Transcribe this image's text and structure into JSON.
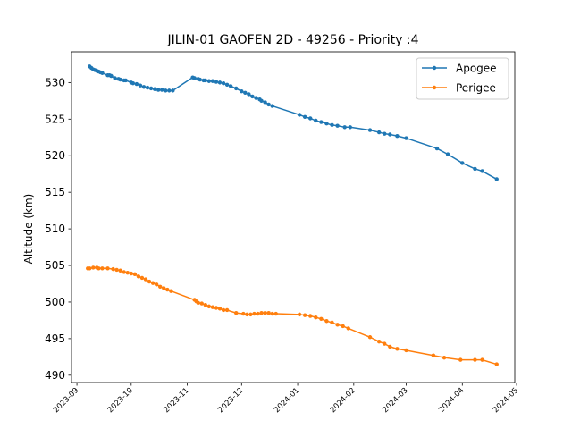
{
  "chart_data": {
    "type": "line",
    "title": "JILIN-01 GAOFEN 2D - 49256 - Priority :4",
    "xlabel": "",
    "ylabel": "Altitude (km)",
    "xlim": [
      "2023-08-29",
      "2024-04-30"
    ],
    "ylim": [
      489.0,
      534.2
    ],
    "x_ticks": [
      "2023-09",
      "2023-10",
      "2023-11",
      "2023-12",
      "2024-01",
      "2024-02",
      "2024-03",
      "2024-04",
      "2024-05"
    ],
    "y_ticks": [
      490,
      495,
      500,
      505,
      510,
      515,
      520,
      525,
      530
    ],
    "grid": false,
    "legend": "top-right",
    "colors": {
      "apogee": "#1f77b4",
      "perigee": "#ff7f0e"
    },
    "series": [
      {
        "name": "Apogee",
        "points": [
          [
            "2023-09-08",
            532.2
          ],
          [
            "2023-09-09",
            532.0
          ],
          [
            "2023-09-10",
            531.8
          ],
          [
            "2023-09-11",
            531.7
          ],
          [
            "2023-09-12",
            531.6
          ],
          [
            "2023-09-13",
            531.5
          ],
          [
            "2023-09-14",
            531.4
          ],
          [
            "2023-09-15",
            531.3
          ],
          [
            "2023-09-18",
            531.0
          ],
          [
            "2023-09-19",
            531.0
          ],
          [
            "2023-09-20",
            530.9
          ],
          [
            "2023-09-22",
            530.6
          ],
          [
            "2023-09-24",
            530.5
          ],
          [
            "2023-09-25",
            530.4
          ],
          [
            "2023-09-27",
            530.3
          ],
          [
            "2023-09-28",
            530.3
          ],
          [
            "2023-10-01",
            530.0
          ],
          [
            "2023-10-02",
            529.9
          ],
          [
            "2023-10-04",
            529.8
          ],
          [
            "2023-10-06",
            529.6
          ],
          [
            "2023-10-08",
            529.4
          ],
          [
            "2023-10-10",
            529.3
          ],
          [
            "2023-10-12",
            529.2
          ],
          [
            "2023-10-14",
            529.1
          ],
          [
            "2023-10-16",
            529.0
          ],
          [
            "2023-10-18",
            529.0
          ],
          [
            "2023-10-20",
            528.9
          ],
          [
            "2023-10-22",
            528.9
          ],
          [
            "2023-10-24",
            528.9
          ],
          [
            "2023-11-04",
            530.7
          ],
          [
            "2023-11-05",
            530.6
          ],
          [
            "2023-11-07",
            530.5
          ],
          [
            "2023-11-08",
            530.4
          ],
          [
            "2023-11-10",
            530.3
          ],
          [
            "2023-11-11",
            530.3
          ],
          [
            "2023-11-13",
            530.2
          ],
          [
            "2023-11-15",
            530.2
          ],
          [
            "2023-11-17",
            530.1
          ],
          [
            "2023-11-19",
            530.0
          ],
          [
            "2023-11-21",
            529.9
          ],
          [
            "2023-11-23",
            529.7
          ],
          [
            "2023-11-25",
            529.5
          ],
          [
            "2023-11-28",
            529.2
          ],
          [
            "2023-12-01",
            528.8
          ],
          [
            "2023-12-03",
            528.6
          ],
          [
            "2023-12-05",
            528.4
          ],
          [
            "2023-12-07",
            528.1
          ],
          [
            "2023-12-09",
            527.9
          ],
          [
            "2023-12-11",
            527.7
          ],
          [
            "2023-12-12",
            527.5
          ],
          [
            "2023-12-14",
            527.3
          ],
          [
            "2023-12-16",
            527.0
          ],
          [
            "2023-12-18",
            526.8
          ],
          [
            "2024-01-02",
            525.6
          ],
          [
            "2024-01-05",
            525.3
          ],
          [
            "2024-01-08",
            525.1
          ],
          [
            "2024-01-11",
            524.8
          ],
          [
            "2024-01-14",
            524.6
          ],
          [
            "2024-01-17",
            524.4
          ],
          [
            "2024-01-20",
            524.2
          ],
          [
            "2024-01-23",
            524.1
          ],
          [
            "2024-01-27",
            523.9
          ],
          [
            "2024-01-30",
            523.9
          ],
          [
            "2024-02-10",
            523.5
          ],
          [
            "2024-02-15",
            523.2
          ],
          [
            "2024-02-18",
            523.0
          ],
          [
            "2024-02-21",
            522.9
          ],
          [
            "2024-02-25",
            522.7
          ],
          [
            "2024-03-01",
            522.4
          ],
          [
            "2024-03-18",
            521.0
          ],
          [
            "2024-03-24",
            520.2
          ],
          [
            "2024-04-01",
            519.0
          ],
          [
            "2024-04-08",
            518.2
          ],
          [
            "2024-04-12",
            517.9
          ],
          [
            "2024-04-20",
            516.8
          ]
        ]
      },
      {
        "name": "Perigee",
        "points": [
          [
            "2023-09-07",
            504.6
          ],
          [
            "2023-09-08",
            504.6
          ],
          [
            "2023-09-10",
            504.7
          ],
          [
            "2023-09-12",
            504.7
          ],
          [
            "2023-09-13",
            504.6
          ],
          [
            "2023-09-15",
            504.6
          ],
          [
            "2023-09-18",
            504.6
          ],
          [
            "2023-09-21",
            504.5
          ],
          [
            "2023-09-23",
            504.4
          ],
          [
            "2023-09-25",
            504.3
          ],
          [
            "2023-09-27",
            504.1
          ],
          [
            "2023-09-29",
            504.0
          ],
          [
            "2023-10-01",
            503.9
          ],
          [
            "2023-10-03",
            503.8
          ],
          [
            "2023-10-05",
            503.5
          ],
          [
            "2023-10-07",
            503.3
          ],
          [
            "2023-10-09",
            503.1
          ],
          [
            "2023-10-11",
            502.8
          ],
          [
            "2023-10-13",
            502.6
          ],
          [
            "2023-10-15",
            502.4
          ],
          [
            "2023-10-17",
            502.1
          ],
          [
            "2023-10-19",
            501.9
          ],
          [
            "2023-10-21",
            501.7
          ],
          [
            "2023-10-23",
            501.5
          ],
          [
            "2023-11-05",
            500.3
          ],
          [
            "2023-11-06",
            500.1
          ],
          [
            "2023-11-07",
            499.9
          ],
          [
            "2023-11-09",
            499.8
          ],
          [
            "2023-11-11",
            499.6
          ],
          [
            "2023-11-13",
            499.4
          ],
          [
            "2023-11-15",
            499.3
          ],
          [
            "2023-11-17",
            499.2
          ],
          [
            "2023-11-19",
            499.1
          ],
          [
            "2023-11-21",
            498.9
          ],
          [
            "2023-11-23",
            498.9
          ],
          [
            "2023-11-28",
            498.5
          ],
          [
            "2023-12-02",
            498.4
          ],
          [
            "2023-12-04",
            498.3
          ],
          [
            "2023-12-06",
            498.3
          ],
          [
            "2023-12-08",
            498.4
          ],
          [
            "2023-12-10",
            498.4
          ],
          [
            "2023-12-12",
            498.5
          ],
          [
            "2023-12-14",
            498.5
          ],
          [
            "2023-12-16",
            498.5
          ],
          [
            "2023-12-18",
            498.4
          ],
          [
            "2023-12-20",
            498.4
          ],
          [
            "2024-01-02",
            498.3
          ],
          [
            "2024-01-05",
            498.2
          ],
          [
            "2024-01-08",
            498.1
          ],
          [
            "2024-01-11",
            497.9
          ],
          [
            "2024-01-14",
            497.7
          ],
          [
            "2024-01-17",
            497.4
          ],
          [
            "2024-01-20",
            497.2
          ],
          [
            "2024-01-23",
            496.9
          ],
          [
            "2024-01-26",
            496.7
          ],
          [
            "2024-01-29",
            496.4
          ],
          [
            "2024-02-10",
            495.2
          ],
          [
            "2024-02-15",
            494.6
          ],
          [
            "2024-02-18",
            494.3
          ],
          [
            "2024-02-21",
            493.9
          ],
          [
            "2024-02-25",
            493.6
          ],
          [
            "2024-03-01",
            493.4
          ],
          [
            "2024-03-16",
            492.7
          ],
          [
            "2024-03-22",
            492.4
          ],
          [
            "2024-03-31",
            492.1
          ],
          [
            "2024-04-08",
            492.1
          ],
          [
            "2024-04-12",
            492.1
          ],
          [
            "2024-04-20",
            491.5
          ]
        ]
      }
    ]
  }
}
